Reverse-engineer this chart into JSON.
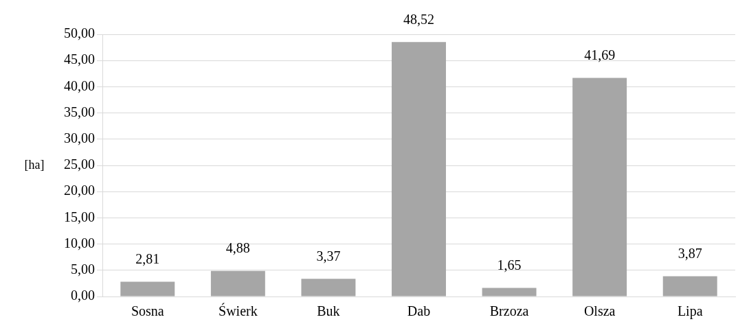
{
  "chart_data": {
    "type": "bar",
    "ylabel": "[ha]",
    "categories": [
      "Sosna",
      "Świerk",
      "Buk",
      "Dab",
      "Brzoza",
      "Olsza",
      "Lipa"
    ],
    "values": [
      2.81,
      4.88,
      3.37,
      48.52,
      1.65,
      41.69,
      3.87
    ],
    "value_labels": [
      "2,81",
      "4,88",
      "3,37",
      "48,52",
      "1,65",
      "41,69",
      "3,87"
    ],
    "color": "#a6a6a6",
    "ylim": [
      0,
      50
    ],
    "yticks": [
      {
        "value": 0,
        "label": "0,00"
      },
      {
        "value": 5,
        "label": "5,00"
      },
      {
        "value": 10,
        "label": "10,00"
      },
      {
        "value": 15,
        "label": "15,00"
      },
      {
        "value": 20,
        "label": "20,00"
      },
      {
        "value": 25,
        "label": "25,00"
      },
      {
        "value": 30,
        "label": "30,00"
      },
      {
        "value": 35,
        "label": "35,00"
      },
      {
        "value": 40,
        "label": "40,00"
      },
      {
        "value": 45,
        "label": "45,00"
      },
      {
        "value": 50,
        "label": "50,00"
      }
    ],
    "grid": "y"
  }
}
